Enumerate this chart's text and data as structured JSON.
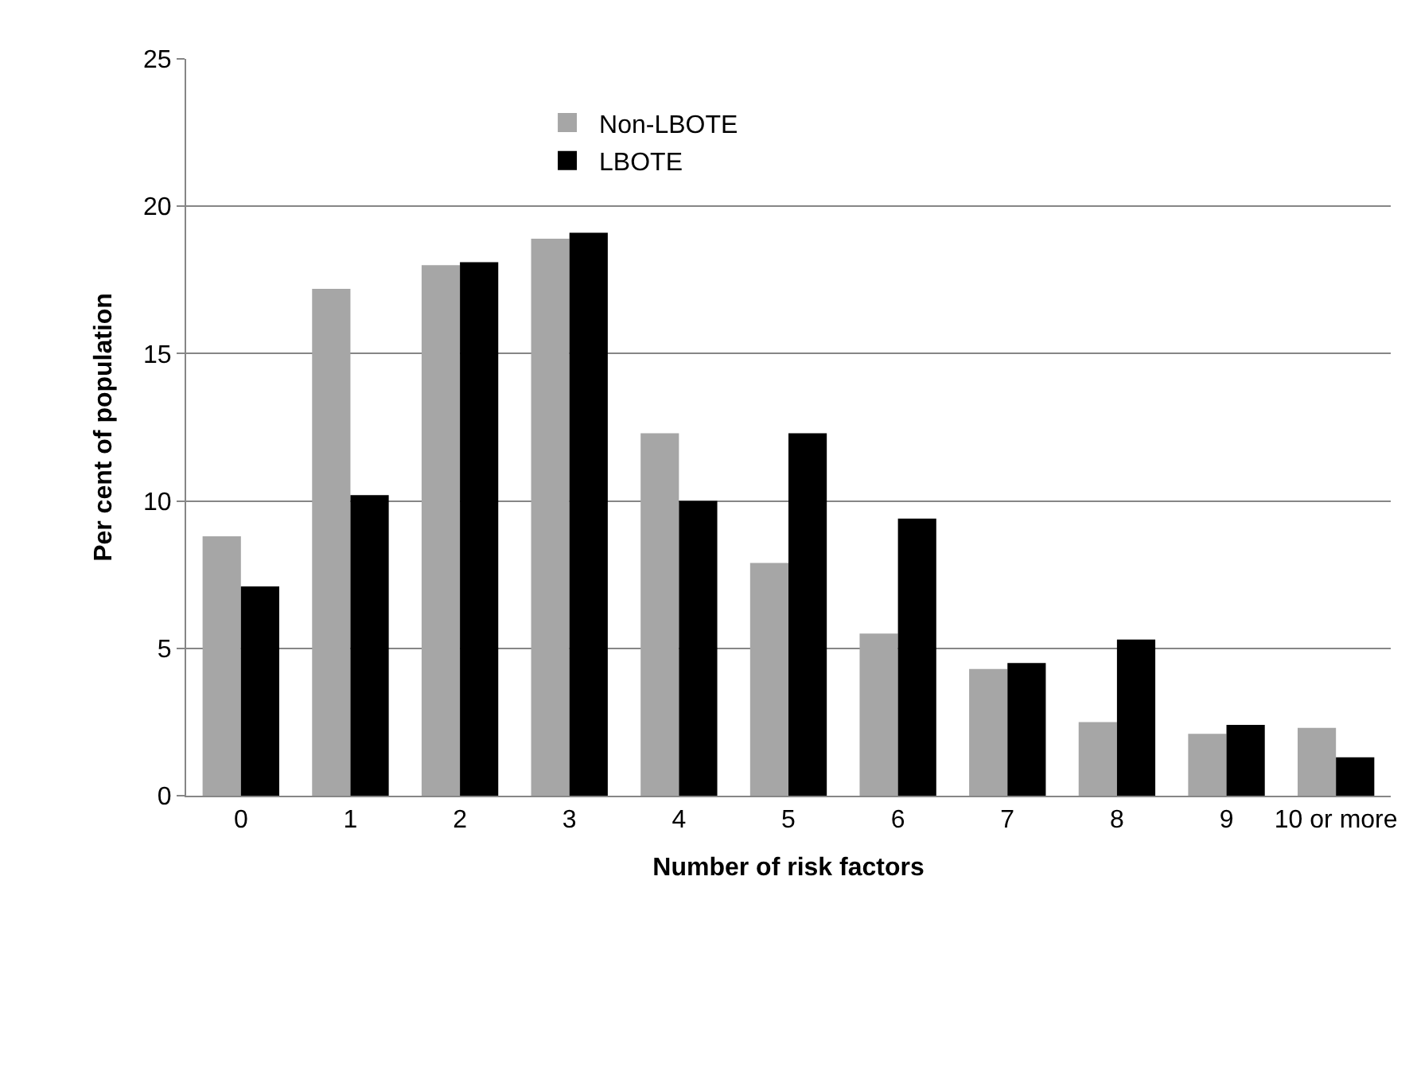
{
  "chart_data": {
    "type": "bar",
    "xlabel": "Number of risk factors",
    "ylabel": "Per cent of population",
    "categories": [
      "0",
      "1",
      "2",
      "3",
      "4",
      "5",
      "6",
      "7",
      "8",
      "9",
      "10 or more"
    ],
    "series": [
      {
        "name": "Non-LBOTE",
        "color": "#a6a6a6",
        "values": [
          8.8,
          17.2,
          18.0,
          18.9,
          12.3,
          7.9,
          5.5,
          4.3,
          2.5,
          2.1,
          2.3
        ]
      },
      {
        "name": "LBOTE",
        "color": "#000000",
        "values": [
          7.1,
          10.2,
          18.1,
          19.1,
          10.0,
          12.3,
          9.4,
          4.5,
          5.3,
          2.4,
          1.3
        ]
      }
    ],
    "ylim": [
      0,
      25
    ],
    "yticks": [
      0,
      5,
      10,
      15,
      20,
      25
    ],
    "grid": "y",
    "legend": "top"
  }
}
